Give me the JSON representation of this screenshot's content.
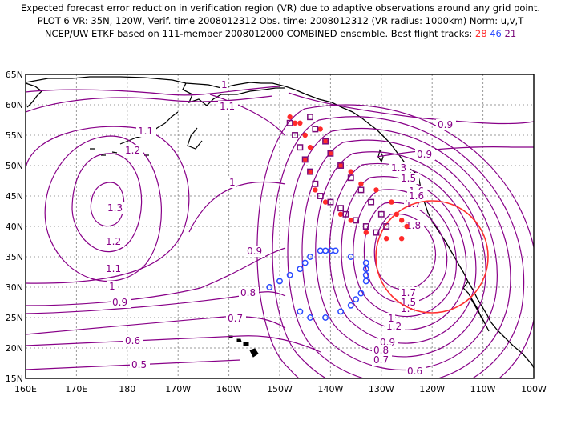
{
  "header": {
    "line1": "Expected forecast error reduction in verification region (VR) due to adaptive observations around any grid point.",
    "line2": "PLOT 6 VR: 35N, 120W, Verif. time 2008012312 Obs. time: 2008012312 (VR radius: 1000km) Norm: u,v,T",
    "line3_prefix": "NCEP/UW ETKF based on 111-member 2008012000 COMBINED ensemble.  Best flight tracks: ",
    "track_red": "28",
    "track_blue": "46",
    "track_purple": "21"
  },
  "map": {
    "lat_labels": [
      "15N",
      "20N",
      "25N",
      "30N",
      "35N",
      "40N",
      "45N",
      "50N",
      "55N",
      "60N",
      "65N"
    ],
    "lon_labels": [
      "160E",
      "170E",
      "180",
      "170W",
      "160W",
      "150W",
      "140W",
      "130W",
      "120W",
      "110W",
      "100W"
    ],
    "contour_labels": [
      {
        "id": "c1-a",
        "text": "1"
      },
      {
        "id": "c11-a",
        "text": "1.1"
      },
      {
        "id": "c11-b",
        "text": "1.1"
      },
      {
        "id": "c12-a",
        "text": "1.2"
      },
      {
        "id": "c13-a",
        "text": "1.3"
      },
      {
        "id": "c12-b",
        "text": "1.2"
      },
      {
        "id": "c11-c",
        "text": "1.1"
      },
      {
        "id": "c1-b",
        "text": "1"
      },
      {
        "id": "c09-a",
        "text": "0.9"
      },
      {
        "id": "c09-b",
        "text": "0.9"
      },
      {
        "id": "c09-c",
        "text": "0.9"
      },
      {
        "id": "c08-a",
        "text": "0.8"
      },
      {
        "id": "c07-a",
        "text": "0.7"
      },
      {
        "id": "c06-a",
        "text": "0.6"
      },
      {
        "id": "c05-a",
        "text": "0.5"
      },
      {
        "id": "c1-c",
        "text": "1"
      },
      {
        "id": "c09-d",
        "text": "0.9"
      },
      {
        "id": "c18-a",
        "text": "1.8"
      },
      {
        "id": "c17-a",
        "text": "1.7"
      },
      {
        "id": "c17-b",
        "text": "1.7"
      },
      {
        "id": "c16-a",
        "text": "1.6"
      },
      {
        "id": "c15-a",
        "text": "1.5"
      },
      {
        "id": "c14-a",
        "text": "1.4"
      },
      {
        "id": "c13-b",
        "text": "1.3"
      },
      {
        "id": "c12-c",
        "text": "1.2"
      },
      {
        "id": "c1-d",
        "text": "1"
      },
      {
        "id": "c09-e",
        "text": "0.9"
      },
      {
        "id": "c08-b",
        "text": "0.8"
      },
      {
        "id": "c07-b",
        "text": "0.7"
      },
      {
        "id": "c06-b",
        "text": "0.6"
      },
      {
        "id": "c15-b",
        "text": "1.5"
      },
      {
        "id": "c16-b",
        "text": "1.6"
      }
    ],
    "colors": {
      "contour": "#880088",
      "grid": "#888888",
      "verification_circle": "#ff3030",
      "track_red": "#ff2a2a",
      "track_blue": "#2a4aff",
      "track_purple": "#7a0a7a",
      "land": "#000000"
    },
    "verification_region": {
      "lat": 35,
      "lon": -120,
      "radius_km": 1000
    },
    "flight_tracks": [
      {
        "id": "28",
        "color": "red",
        "points": [
          [
            58,
            -148
          ],
          [
            57,
            -146
          ],
          [
            56,
            -142
          ],
          [
            54,
            -141
          ],
          [
            52,
            -140
          ],
          [
            50,
            -138
          ],
          [
            49,
            -136
          ],
          [
            47,
            -134
          ],
          [
            46,
            -131
          ],
          [
            44,
            -128
          ],
          [
            42,
            -127
          ],
          [
            41,
            -126
          ],
          [
            40,
            -125
          ],
          [
            38,
            -126
          ],
          [
            38,
            -129
          ],
          [
            39,
            -133
          ],
          [
            41,
            -136
          ],
          [
            42,
            -138
          ],
          [
            44,
            -141
          ],
          [
            46,
            -143
          ],
          [
            49,
            -144
          ],
          [
            51,
            -145
          ],
          [
            53,
            -144
          ],
          [
            55,
            -145
          ],
          [
            57,
            -147
          ]
        ]
      },
      {
        "id": "46",
        "color": "blue",
        "points": [
          [
            30,
            -152
          ],
          [
            31,
            -150
          ],
          [
            32,
            -148
          ],
          [
            33,
            -146
          ],
          [
            34,
            -145
          ],
          [
            35,
            -144
          ],
          [
            36,
            -142
          ],
          [
            36,
            -141
          ],
          [
            36,
            -140
          ],
          [
            36,
            -139
          ],
          [
            35,
            -136
          ],
          [
            34,
            -133
          ],
          [
            33,
            -133
          ],
          [
            32,
            -133
          ],
          [
            31,
            -133
          ],
          [
            29,
            -134
          ],
          [
            28,
            -135
          ],
          [
            27,
            -136
          ],
          [
            26,
            -138
          ],
          [
            25,
            -141
          ],
          [
            25,
            -144
          ],
          [
            26,
            -146
          ]
        ]
      },
      {
        "id": "21",
        "color": "purple",
        "points": [
          [
            57,
            -148
          ],
          [
            55,
            -147
          ],
          [
            53,
            -146
          ],
          [
            51,
            -145
          ],
          [
            49,
            -144
          ],
          [
            47,
            -143
          ],
          [
            45,
            -142
          ],
          [
            44,
            -140
          ],
          [
            43,
            -138
          ],
          [
            42,
            -137
          ],
          [
            41,
            -135
          ],
          [
            40,
            -133
          ],
          [
            39,
            -131
          ],
          [
            40,
            -129
          ],
          [
            42,
            -130
          ],
          [
            44,
            -132
          ],
          [
            46,
            -134
          ],
          [
            48,
            -136
          ],
          [
            50,
            -138
          ],
          [
            52,
            -140
          ],
          [
            54,
            -141
          ],
          [
            56,
            -143
          ],
          [
            58,
            -144
          ]
        ]
      }
    ]
  }
}
